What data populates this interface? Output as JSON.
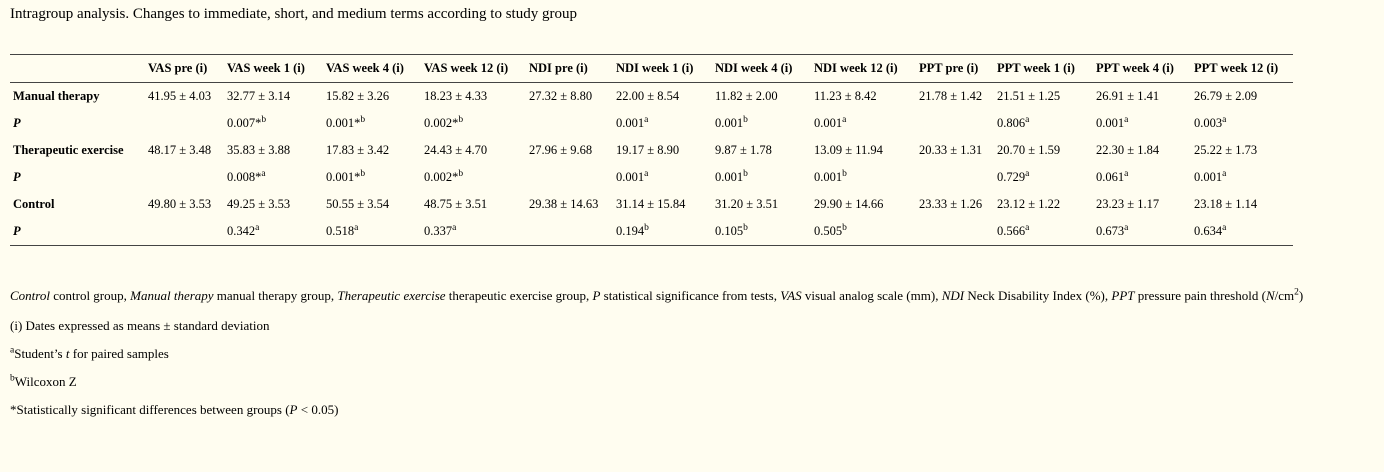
{
  "caption": "Intragroup analysis. Changes to immediate, short, and medium terms according to study group",
  "table": {
    "columns": [
      "",
      "VAS pre (i)",
      "VAS week 1 (i)",
      "VAS week 4 (i)",
      "VAS week 12 (i)",
      "NDI pre (i)",
      "NDI week 1 (i)",
      "NDI week 4 (i)",
      "NDI week 12 (i)",
      "PPT pre (i)",
      "PPT week 1 (i)",
      "PPT week 4 (i)",
      "PPT week 12 (i)"
    ],
    "rows": [
      {
        "label": "Manual therapy",
        "kind": "group",
        "cells": [
          {
            "v": "41.95 ± 4.03"
          },
          {
            "v": "32.77 ± 3.14"
          },
          {
            "v": "15.82 ± 3.26"
          },
          {
            "v": "18.23 ± 4.33"
          },
          {
            "v": "27.32 ± 8.80"
          },
          {
            "v": "22.00 ± 8.54"
          },
          {
            "v": "11.82 ± 2.00"
          },
          {
            "v": "11.23 ± 8.42"
          },
          {
            "v": "21.78 ± 1.42"
          },
          {
            "v": "21.51 ± 1.25"
          },
          {
            "v": "26.91 ± 1.41"
          },
          {
            "v": "26.79 ± 2.09"
          }
        ]
      },
      {
        "label": "P",
        "kind": "p",
        "cells": [
          {
            "v": ""
          },
          {
            "v": "0.007*",
            "s": "b"
          },
          {
            "v": "0.001*",
            "s": "b"
          },
          {
            "v": "0.002*",
            "s": "b"
          },
          {
            "v": ""
          },
          {
            "v": "0.001",
            "s": "a"
          },
          {
            "v": "0.001",
            "s": "b"
          },
          {
            "v": "0.001",
            "s": "a"
          },
          {
            "v": ""
          },
          {
            "v": "0.806",
            "s": "a"
          },
          {
            "v": "0.001",
            "s": "a"
          },
          {
            "v": "0.003",
            "s": "a"
          }
        ]
      },
      {
        "label": "Therapeutic exercise",
        "kind": "group",
        "cells": [
          {
            "v": "48.17 ± 3.48"
          },
          {
            "v": "35.83 ± 3.88"
          },
          {
            "v": "17.83 ± 3.42"
          },
          {
            "v": "24.43 ± 4.70"
          },
          {
            "v": "27.96 ± 9.68"
          },
          {
            "v": "19.17 ± 8.90"
          },
          {
            "v": "9.87 ± 1.78"
          },
          {
            "v": "13.09 ± 11.94"
          },
          {
            "v": "20.33 ± 1.31"
          },
          {
            "v": "20.70 ± 1.59"
          },
          {
            "v": "22.30 ± 1.84"
          },
          {
            "v": "25.22 ± 1.73"
          }
        ]
      },
      {
        "label": "P",
        "kind": "p",
        "cells": [
          {
            "v": ""
          },
          {
            "v": "0.008*",
            "s": "a"
          },
          {
            "v": "0.001*",
            "s": "b"
          },
          {
            "v": "0.002*",
            "s": "b"
          },
          {
            "v": ""
          },
          {
            "v": "0.001",
            "s": "a"
          },
          {
            "v": "0.001",
            "s": "b"
          },
          {
            "v": "0.001",
            "s": "b"
          },
          {
            "v": ""
          },
          {
            "v": "0.729",
            "s": "a"
          },
          {
            "v": "0.061",
            "s": "a"
          },
          {
            "v": "0.001",
            "s": "a"
          }
        ]
      },
      {
        "label": "Control",
        "kind": "group",
        "cells": [
          {
            "v": "49.80 ± 3.53"
          },
          {
            "v": "49.25 ± 3.53"
          },
          {
            "v": "50.55 ± 3.54"
          },
          {
            "v": "48.75 ± 3.51"
          },
          {
            "v": "29.38 ± 14.63"
          },
          {
            "v": "31.14 ± 15.84"
          },
          {
            "v": "31.20 ± 3.51"
          },
          {
            "v": "29.90 ± 14.66"
          },
          {
            "v": "23.33 ± 1.26"
          },
          {
            "v": "23.12 ± 1.22"
          },
          {
            "v": "23.23 ± 1.17"
          },
          {
            "v": "23.18 ± 1.14"
          }
        ]
      },
      {
        "label": "P",
        "kind": "p",
        "cells": [
          {
            "v": ""
          },
          {
            "v": "0.342",
            "s": "a"
          },
          {
            "v": "0.518",
            "s": "a"
          },
          {
            "v": "0.337",
            "s": "a"
          },
          {
            "v": ""
          },
          {
            "v": "0.194",
            "s": "b"
          },
          {
            "v": "0.105",
            "s": "b"
          },
          {
            "v": "0.505",
            "s": "b"
          },
          {
            "v": ""
          },
          {
            "v": "0.566",
            "s": "a"
          },
          {
            "v": "0.673",
            "s": "a"
          },
          {
            "v": "0.634",
            "s": "a"
          }
        ]
      }
    ]
  },
  "footnotes": {
    "definitions": [
      {
        "term": "Control",
        "desc": " control group, "
      },
      {
        "term": "Manual therapy",
        "desc": " manual therapy group, "
      },
      {
        "term": "Therapeutic exercise",
        "desc": " therapeutic exercise group, "
      },
      {
        "term": "P",
        "desc": " statistical significance from tests, "
      },
      {
        "term": "VAS",
        "desc": " visual analog scale (mm), "
      },
      {
        "term": "NDI",
        "desc": " Neck Disability Index (%), "
      },
      {
        "term": "PPT",
        "desc": " pressure pain threshold ("
      }
    ],
    "unit_italic": "N",
    "unit_rest": "/cm",
    "unit_sup": "2",
    "unit_close": ")",
    "note_i": "(i) Dates expressed as means ± standard deviation",
    "note_a_mark": "a",
    "note_a_pre": "Student’s ",
    "note_a_italic": "t",
    "note_a_post": " for paired samples",
    "note_b_mark": "b",
    "note_b_text": "Wilcoxon Z",
    "note_star_pre": "*Statistically significant differences between groups (",
    "note_star_italic": "P",
    "note_star_post": " < 0.05)"
  }
}
